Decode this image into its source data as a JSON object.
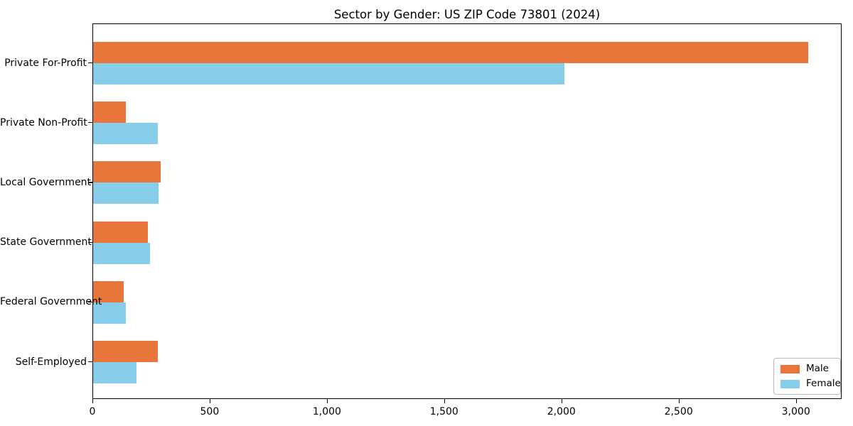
{
  "figure": {
    "title": "Sector by Gender: US ZIP Code 73801 (2024)"
  },
  "chart_data": {
    "type": "bar",
    "orientation": "horizontal",
    "title": "Sector by Gender: US ZIP Code 73801 (2024)",
    "categories": [
      "Private For-Profit",
      "Private Non-Profit",
      "Local Government",
      "State Government",
      "Federal Government",
      "Self-Employed"
    ],
    "series": [
      {
        "name": "Male",
        "color": "#e8763b",
        "values": [
          3050,
          140,
          287,
          233,
          130,
          277
        ]
      },
      {
        "name": "Female",
        "color": "#87ceeb",
        "values": [
          2010,
          275,
          280,
          243,
          138,
          184
        ]
      }
    ],
    "xlabel": "",
    "ylabel": "",
    "xlim": [
      0,
      3195
    ],
    "xticks": [
      0,
      500,
      1000,
      1500,
      2000,
      2500,
      3000
    ],
    "xtick_labels": [
      "0",
      "500",
      "1,000",
      "1,500",
      "2,000",
      "2,500",
      "3,000"
    ],
    "grid": false,
    "legend": {
      "position": "lower right",
      "entries": [
        "Male",
        "Female"
      ]
    }
  }
}
